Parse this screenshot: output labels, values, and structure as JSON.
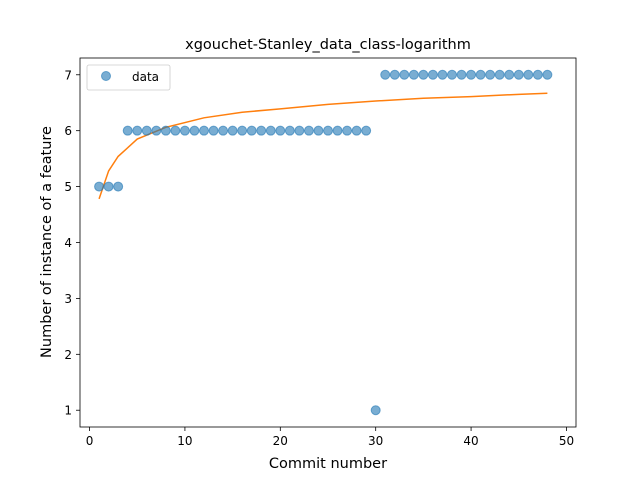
{
  "chart_data": {
    "type": "scatter",
    "title": "xgouchet-Stanley_data_class-logarithm",
    "xlabel": "Commit number",
    "ylabel": "Number of instance of a feature",
    "xlim": [
      -1,
      51
    ],
    "ylim": [
      0.7,
      7.3
    ],
    "xticks": [
      0,
      10,
      20,
      30,
      40,
      50
    ],
    "yticks": [
      1,
      2,
      3,
      4,
      5,
      6,
      7
    ],
    "grid": false,
    "legend": {
      "placement": "top-left",
      "entries": [
        "data"
      ]
    },
    "colors": {
      "scatter": "#1f77b4",
      "fit": "#ff7f0e"
    },
    "series": [
      {
        "name": "data",
        "kind": "scatter",
        "x": [
          1,
          2,
          3,
          4,
          5,
          6,
          7,
          8,
          9,
          10,
          11,
          12,
          13,
          14,
          15,
          16,
          17,
          18,
          19,
          20,
          21,
          22,
          23,
          24,
          25,
          26,
          27,
          28,
          29,
          30,
          31,
          32,
          33,
          34,
          35,
          36,
          37,
          38,
          39,
          40,
          41,
          42,
          43,
          44,
          45,
          46,
          47,
          48
        ],
        "y": [
          5,
          5,
          5,
          6,
          6,
          6,
          6,
          6,
          6,
          6,
          6,
          6,
          6,
          6,
          6,
          6,
          6,
          6,
          6,
          6,
          6,
          6,
          6,
          6,
          6,
          6,
          6,
          6,
          6,
          1,
          7,
          7,
          7,
          7,
          7,
          7,
          7,
          7,
          7,
          7,
          7,
          7,
          7,
          7,
          7,
          7,
          7,
          7
        ]
      },
      {
        "kind": "line",
        "x": [
          1,
          2,
          3,
          5,
          8,
          12,
          16,
          20,
          25,
          30,
          35,
          40,
          45,
          48
        ],
        "y": [
          4.78,
          5.28,
          5.54,
          5.85,
          6.06,
          6.23,
          6.33,
          6.39,
          6.47,
          6.53,
          6.58,
          6.61,
          6.65,
          6.67
        ]
      }
    ]
  }
}
